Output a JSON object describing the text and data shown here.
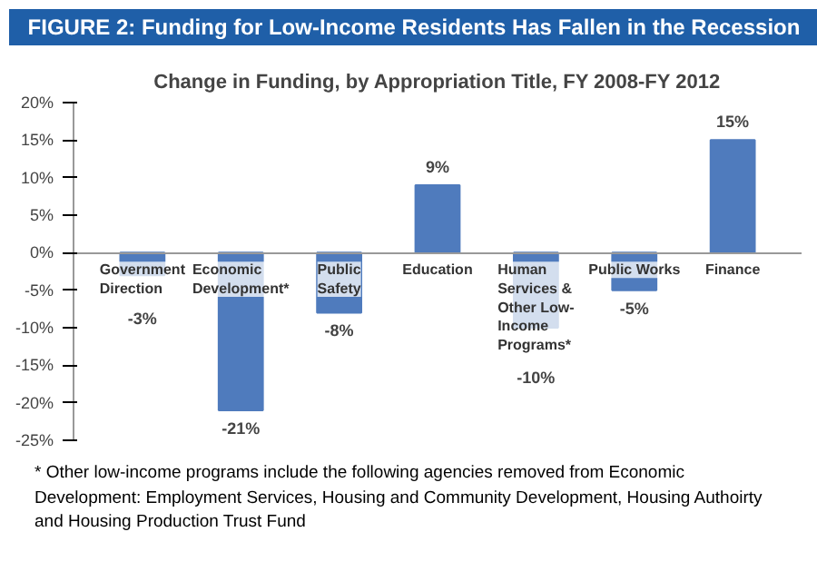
{
  "chart_data": {
    "type": "bar",
    "title": "FIGURE 2: Funding for Low-Income Residents Has Fallen in the Recession",
    "subtitle": "Change in Funding, by Appropriation Title, FY 2008-FY 2012",
    "categories": [
      "Government Direction",
      "Economic Development*",
      "Public Safety",
      "Education",
      "Human Services & Other Low-Income Programs*",
      "Public Works",
      "Finance"
    ],
    "values": [
      -3,
      -21,
      -8,
      9,
      -10,
      -5,
      15
    ],
    "value_labels": [
      "-3%",
      "-21%",
      "-8%",
      "9%",
      "-10%",
      "-5%",
      "15%"
    ],
    "color": "#4f7bbd",
    "ylim": [
      -25,
      20
    ],
    "yticks": [
      {
        "value": -25,
        "label": "-25%"
      },
      {
        "value": -20,
        "label": "-20%"
      },
      {
        "value": -15,
        "label": "-15%"
      },
      {
        "value": -10,
        "label": "-10%"
      },
      {
        "value": -5,
        "label": "-5%"
      },
      {
        "value": 0,
        "label": "0%"
      },
      {
        "value": 5,
        "label": "5%"
      },
      {
        "value": 10,
        "label": "10%"
      },
      {
        "value": 15,
        "label": "15%"
      },
      {
        "value": 20,
        "label": "20%"
      }
    ],
    "grid": false,
    "annotations": [
      "* Other low-income programs include the following agencies removed from Economic Development: Employment Services, Housing and Community Development, Housing Authoirty and Housing Production Trust Fund"
    ]
  }
}
